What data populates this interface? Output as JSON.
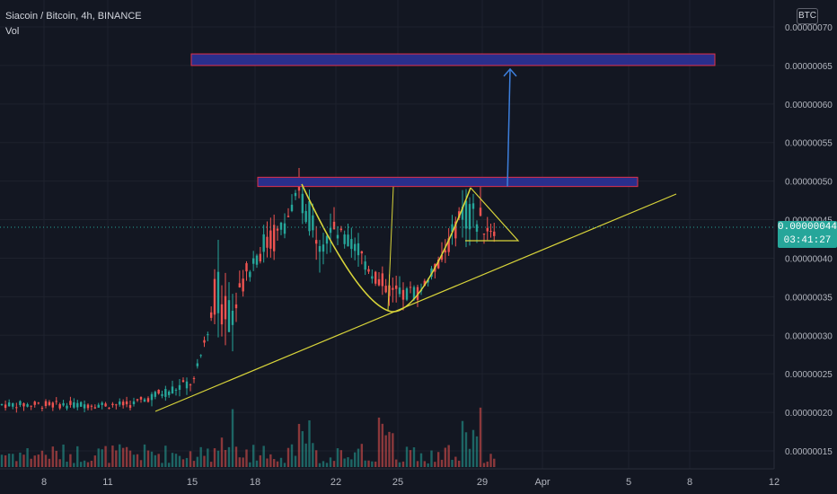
{
  "header": {
    "symbol_line": "Siacoin / Bitcoin, 4h, BINANCE",
    "volume_label": "Vol",
    "currency_badge": "BTC"
  },
  "last_price": {
    "value": "0.00000044",
    "countdown": "03:41:27"
  },
  "colors": {
    "background": "#131722",
    "grid": "#1e222d",
    "bull": "#26a69a",
    "bear": "#ef5350",
    "annotation_line": "#d8d43a",
    "zone_fill": "#2a2f8c",
    "zone_border": "#e0304a",
    "target_arrow": "#3d7fdc"
  },
  "chart_data": {
    "type": "candlestick",
    "title": "",
    "interval": "4h",
    "exchange": "BINANCE",
    "y_axis": {
      "ticks": [
        "0.00000070",
        "0.00000065",
        "0.00000060",
        "0.00000055",
        "0.00000050",
        "0.00000045",
        "0.00000040",
        "0.00000035",
        "0.00000030",
        "0.00000025",
        "0.00000020",
        "0.00000015"
      ],
      "ylim": [
        1.36e-07,
        7.2e-08
      ]
    },
    "x_axis": {
      "ticks": [
        "8",
        "11",
        "15",
        "18",
        "22",
        "25",
        "29",
        "Apr",
        "5",
        "8",
        "12"
      ]
    },
    "candles_daily_approx": [
      {
        "day": "6",
        "o": 21,
        "h": 22,
        "l": 20,
        "c": 21
      },
      {
        "day": "8",
        "o": 21,
        "h": 22,
        "l": 20,
        "c": 21
      },
      {
        "day": "10",
        "o": 21,
        "h": 22,
        "l": 20,
        "c": 21
      },
      {
        "day": "12",
        "o": 21,
        "h": 22,
        "l": 20,
        "c": 21
      },
      {
        "day": "13",
        "o": 21,
        "h": 23,
        "l": 20,
        "c": 22
      },
      {
        "day": "14",
        "o": 22,
        "h": 24,
        "l": 21,
        "c": 23
      },
      {
        "day": "15",
        "o": 23,
        "h": 25,
        "l": 22,
        "c": 24
      },
      {
        "day": "16",
        "o": 24,
        "h": 40,
        "l": 23,
        "c": 34
      },
      {
        "day": "17",
        "o": 34,
        "h": 38,
        "l": 32,
        "c": 35
      },
      {
        "day": "18",
        "o": 35,
        "h": 43,
        "l": 34,
        "c": 41
      },
      {
        "day": "19",
        "o": 41,
        "h": 45,
        "l": 39,
        "c": 43
      },
      {
        "day": "20",
        "o": 43,
        "h": 50,
        "l": 42,
        "c": 48
      },
      {
        "day": "21",
        "o": 48,
        "h": 49,
        "l": 40,
        "c": 43
      },
      {
        "day": "22",
        "o": 43,
        "h": 45,
        "l": 40,
        "c": 43
      },
      {
        "day": "23",
        "o": 43,
        "h": 45,
        "l": 39,
        "c": 41
      },
      {
        "day": "24",
        "o": 41,
        "h": 42,
        "l": 36,
        "c": 37
      },
      {
        "day": "25",
        "o": 37,
        "h": 38,
        "l": 33,
        "c": 35
      },
      {
        "day": "26",
        "o": 35,
        "h": 37,
        "l": 34,
        "c": 36
      },
      {
        "day": "27",
        "o": 36,
        "h": 41,
        "l": 35,
        "c": 40
      },
      {
        "day": "28",
        "o": 40,
        "h": 49,
        "l": 39,
        "c": 46
      },
      {
        "day": "29",
        "o": 46,
        "h": 48,
        "l": 43,
        "c": 44
      },
      {
        "day": "30",
        "o": 44,
        "h": 46,
        "l": 43,
        "c": 44
      }
    ],
    "value_units_note": "prices in 1e-8 BTC (satoshi)",
    "annotations": {
      "resistance_zone": [
        4.9e-07,
        5.05e-07
      ],
      "target_zone": [
        6.5e-07,
        6.65e-07
      ],
      "pattern": "cup and handle",
      "uptrend_line": "rising support"
    }
  }
}
